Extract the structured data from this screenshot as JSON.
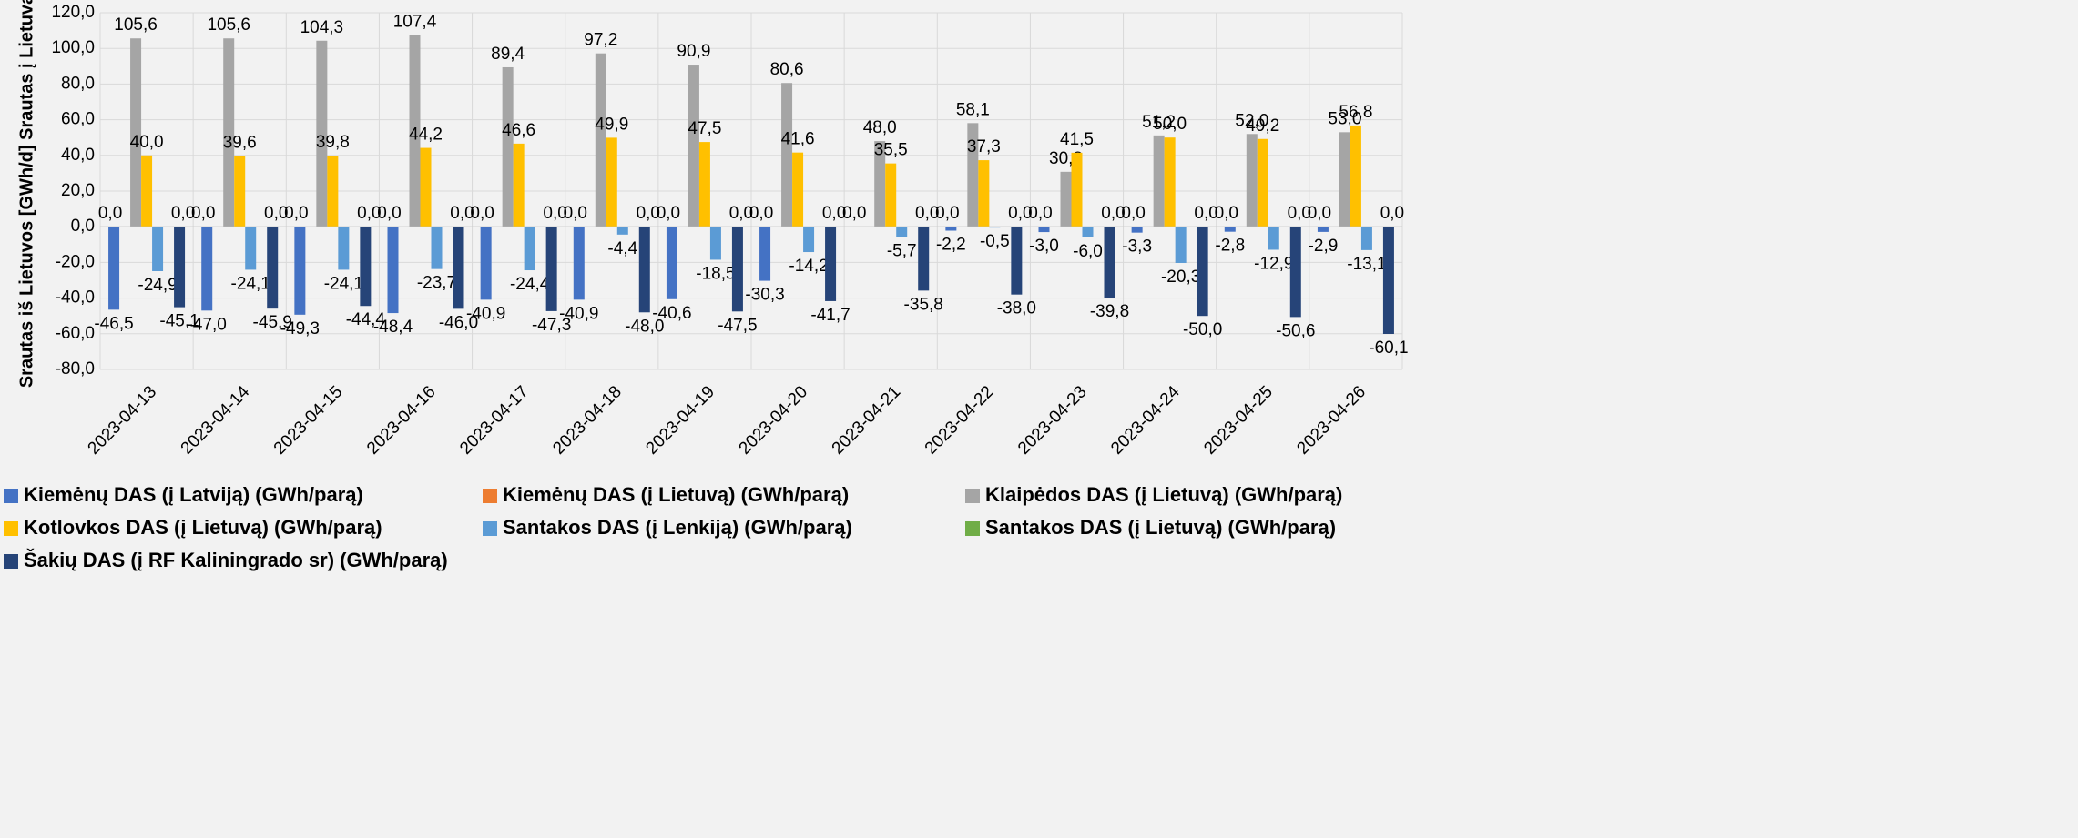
{
  "chart_data": {
    "type": "bar",
    "y_label": "Srautas iš Lietuvos [GWh/d] Srautas į Lietuvą",
    "categories": [
      "2023-04-13",
      "2023-04-14",
      "2023-04-15",
      "2023-04-16",
      "2023-04-17",
      "2023-04-18",
      "2023-04-19",
      "2023-04-20",
      "2023-04-21",
      "2023-04-22",
      "2023-04-23",
      "2023-04-24",
      "2023-04-25",
      "2023-04-26"
    ],
    "series": [
      {
        "name": "Kiemėnų DAS (į Latviją) (GWh/parą)",
        "color": "#4472c4",
        "values": [
          -46.5,
          -47.0,
          -49.3,
          -48.4,
          -40.9,
          -40.9,
          -40.6,
          -30.3,
          null,
          -2.2,
          -3.0,
          -3.3,
          -2.8,
          -2.9
        ],
        "value_labels": [
          "-46,5",
          "-47,0",
          "-49,3",
          "-48,4",
          "-40,9",
          "-40,9",
          "-40,6",
          "-30,3",
          null,
          "-2,2",
          "-3,0",
          "-3,3",
          "-2,8",
          "-2,9"
        ]
      },
      {
        "name": "Kiemėnų DAS (į Lietuvą) (GWh/parą)",
        "color": "#ed7d31",
        "values": [
          0,
          0,
          0,
          0,
          0,
          0,
          0,
          0,
          0,
          0,
          0,
          0,
          0,
          0
        ],
        "value_labels": [
          "0,0",
          "0,0",
          "0,0",
          "0,0",
          "0,0",
          "0,0",
          "0,0",
          "0,0",
          "0,0",
          "0,0",
          "0,0",
          "0,0",
          "0,0",
          "0,0"
        ]
      },
      {
        "name": "Klaipėdos DAS (į Lietuvą) (GWh/parą)",
        "color": "#a5a5a5",
        "values": [
          105.6,
          105.6,
          104.3,
          107.4,
          89.4,
          97.2,
          90.9,
          80.6,
          48.0,
          58.1,
          30.8,
          51.2,
          52.0,
          53.0
        ],
        "value_labels": [
          "105,6",
          "105,6",
          "104,3",
          "107,4",
          "89,4",
          "97,2",
          "90,9",
          "80,6",
          "48,0",
          "58,1",
          "30,8",
          "51,2",
          "52,0",
          "53,0"
        ]
      },
      {
        "name": "Kotlovkos DAS (į Lietuvą) (GWh/parą)",
        "color": "#ffc000",
        "values": [
          40.0,
          39.6,
          39.8,
          44.2,
          46.6,
          49.9,
          47.5,
          41.6,
          35.5,
          37.3,
          41.5,
          50.0,
          49.2,
          56.8
        ],
        "value_labels": [
          "40,0",
          "39,6",
          "39,8",
          "44,2",
          "46,6",
          "49,9",
          "47,5",
          "41,6",
          "35,5",
          "37,3",
          "41,5",
          "50,0",
          "49,2",
          "56,8"
        ]
      },
      {
        "name": "Santakos DAS (į Lenkiją) (GWh/parą)",
        "color": "#5b9bd5",
        "values": [
          -24.9,
          -24.1,
          -24.1,
          -23.7,
          -24.4,
          -4.4,
          -18.5,
          -14.2,
          -5.7,
          -0.5,
          -6.0,
          -20.3,
          -12.9,
          -13.1
        ],
        "value_labels": [
          "-24,9",
          "-24,1",
          "-24,1",
          "-23,7",
          "-24,4",
          "-4,4",
          "-18,5",
          "-14,2",
          "-5,7",
          "-0,5",
          "-6,0",
          "-20,3",
          "-12,9",
          "-13,1"
        ]
      },
      {
        "name": "Santakos DAS (į Lietuvą) (GWh/parą)",
        "color": "#70ad47",
        "values": [
          0,
          0,
          0,
          0,
          0,
          0,
          0,
          0,
          0,
          0,
          0,
          0,
          0,
          0
        ],
        "value_labels": [
          "0,0",
          "0,0",
          "0,0",
          "0,0",
          "0,0",
          "0,0",
          "0,0",
          "0,0",
          "0,0",
          "0,0",
          "0,0",
          "0,0",
          "0,0",
          "0,0"
        ]
      },
      {
        "name": "Šakių DAS (į RF Kaliningrado sr) (GWh/parą)",
        "color": "#264478",
        "values": [
          -45.1,
          -45.9,
          -44.4,
          -46.0,
          -47.3,
          -48.0,
          -47.5,
          -41.7,
          -35.8,
          -38.0,
          -39.8,
          -50.0,
          -50.6,
          -60.1
        ],
        "value_labels": [
          "-45,1",
          "-45,9",
          "-44,4",
          "-46,0",
          "-47,3",
          "-48,0",
          "-47,5",
          "-41,7",
          "-35,8",
          "-38,0",
          "-39,8",
          "-50,0",
          "-50,6",
          "-60,1"
        ]
      }
    ],
    "ylim": [
      -80,
      120
    ],
    "yticks": [
      {
        "value": -80,
        "label": "-80,0"
      },
      {
        "value": -60,
        "label": "-60,0"
      },
      {
        "value": -40,
        "label": "-40,0"
      },
      {
        "value": -20,
        "label": "-20,0"
      },
      {
        "value": 0,
        "label": "0,0"
      },
      {
        "value": 20,
        "label": "20,0"
      },
      {
        "value": 40,
        "label": "40,0"
      },
      {
        "value": 60,
        "label": "60,0"
      },
      {
        "value": 80,
        "label": "80,0"
      },
      {
        "value": 100,
        "label": "100,0"
      },
      {
        "value": 120,
        "label": "120,0"
      }
    ],
    "grid": true
  }
}
